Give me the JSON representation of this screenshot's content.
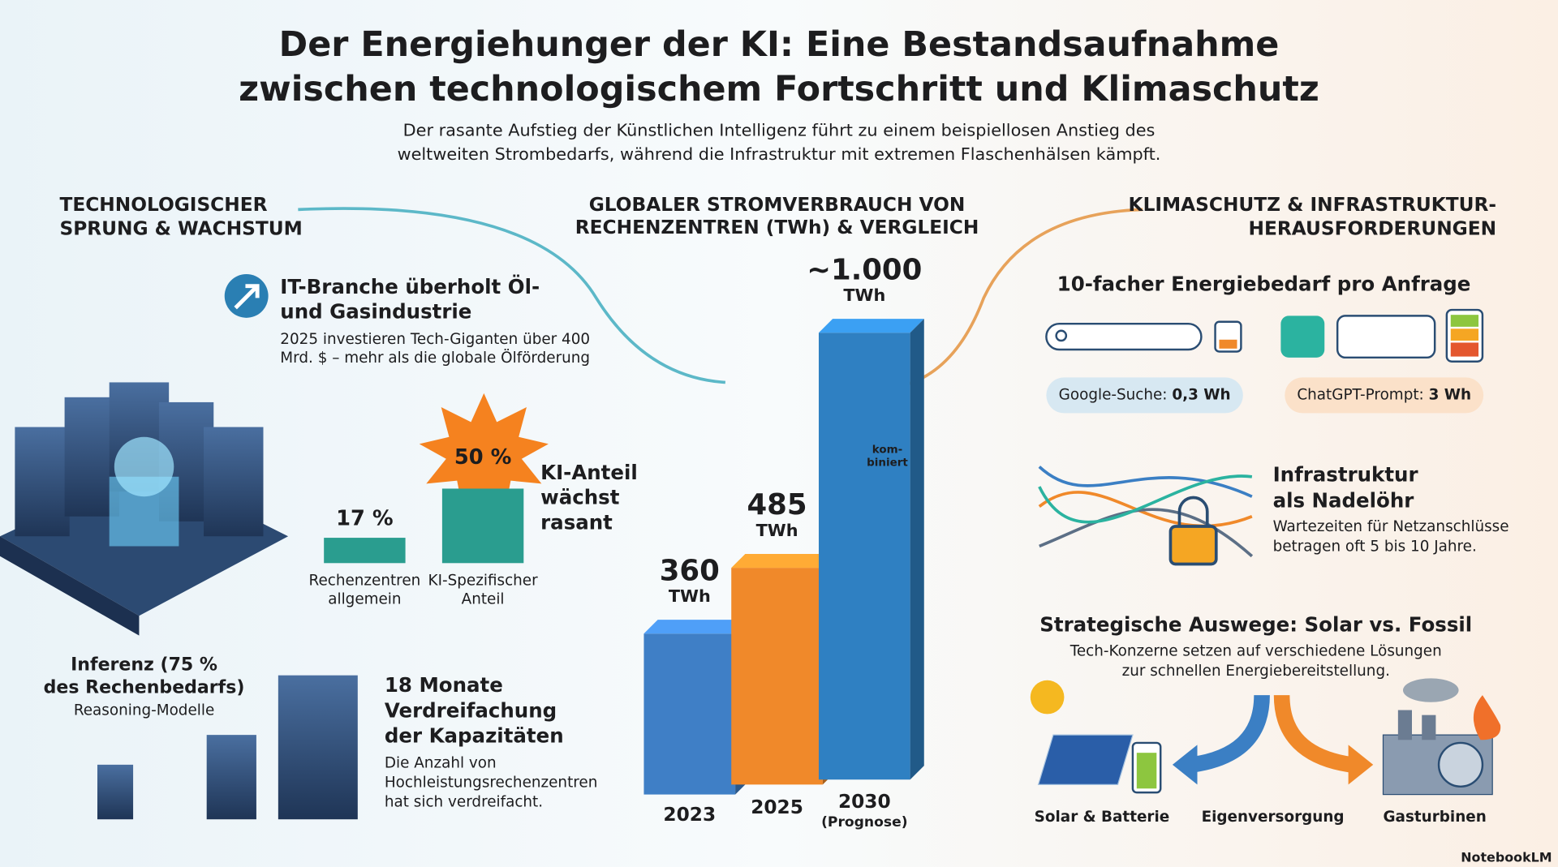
{
  "header": {
    "title": [
      "Der Energiehunger der KI: Eine Bestandsaufnahme",
      "zwischen technologischem Fortschritt und Klimaschutz"
    ],
    "subtitle": [
      "Der rasante Aufstieg der Künstlichen Intelligenz führt zu einem beispiellosen Anstieg des",
      "weltweiten Strombedarfs, während die Infrastruktur mit extremen Flaschenhälsen kämpft."
    ]
  },
  "left": {
    "heading": [
      "TECHNOLOGISCHER",
      "SPRUNG & WACHSTUM"
    ],
    "it": {
      "title": [
        "IT-Branche überholt Öl-",
        "und Gasindustrie"
      ],
      "text": [
        "2025 investieren Tech-Giganten über 400",
        "Mrd. $ – mehr als die globale Ölförderung"
      ]
    },
    "share_label": [
      "KI-Anteil",
      "wächst",
      "rasant"
    ],
    "inference": {
      "title": [
        "Inferenz (75 %",
        "des Rechenbedarfs)"
      ],
      "text": "Reasoning-Modelle"
    },
    "capacity": {
      "title": [
        "18 Monate",
        "Verdreifachung",
        "der Kapazitäten"
      ],
      "text": [
        "Die Anzahl von",
        "Hochleistungsrechenzentren",
        "hat sich verdreifacht."
      ]
    }
  },
  "right": {
    "heading": [
      "KLIMASCHUTZ & INFRASTRUKTUR-",
      "HERAUSFORDERUNGEN"
    ],
    "energy": {
      "title": "10-facher Energiebedarf pro Anfrage",
      "google": {
        "label": "Google-Suche: ",
        "value": "0,3 Wh"
      },
      "chatgpt": {
        "label": "ChatGPT-Prompt: ",
        "value": "3 Wh"
      }
    },
    "infra": {
      "title": [
        "Infrastruktur",
        "als Nadelöhr"
      ],
      "text": [
        "Wartezeiten für Netzanschlüsse",
        "betragen oft 5 bis 10 Jahre."
      ]
    },
    "strategy": {
      "title": "Strategische Auswege: Solar vs. Fossil",
      "text": [
        "Tech-Konzerne setzen auf verschiedene Lösungen",
        "zur schnellen Energiebereitstellung."
      ],
      "options": [
        "Solar & Batterie",
        "Eigenversorgung",
        "Gasturbinen"
      ]
    }
  },
  "footer": {
    "brand": "NotebookLM"
  },
  "chart_data": [
    {
      "type": "bar",
      "title": [
        "GLOBALER STROMVERBRAUCH VON",
        "RECHENZENTREN (TWh) & VERGLEICH"
      ],
      "categories": [
        "2023",
        "2025",
        "2030"
      ],
      "values": [
        360,
        485,
        1000
      ],
      "value_labels": [
        "360",
        "485",
        "~1.000"
      ],
      "unit": "TWh",
      "colors": [
        "#3f7fc6",
        "#f0892a",
        "#2f80c2"
      ],
      "annotations": {
        "forecast": "(Prognose)",
        "combined": [
          "kom-",
          "biniert"
        ]
      }
    },
    {
      "type": "bar",
      "categories": [
        [
          "Rechenzentren",
          "allgemein"
        ],
        [
          "KI-Spezifischer",
          "Anteil"
        ]
      ],
      "values": [
        17,
        50
      ],
      "value_labels": [
        "17 %",
        "50 %"
      ],
      "color": "#2a9d8f"
    }
  ]
}
